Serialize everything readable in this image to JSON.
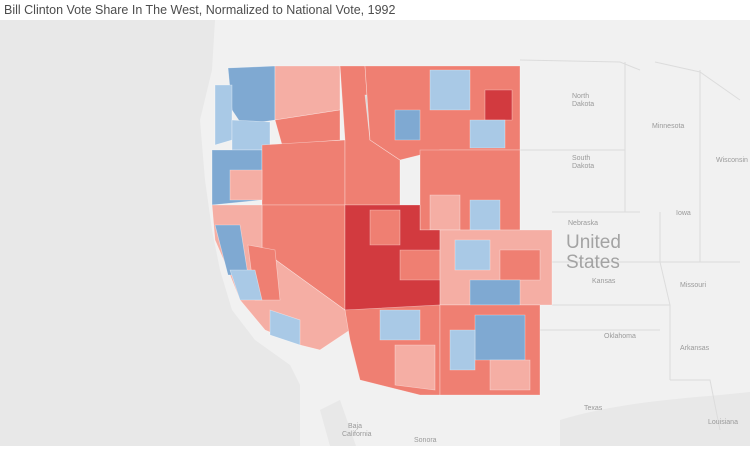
{
  "title": "Bill Clinton Vote Share In The West, Normalized to National Vote, 1992",
  "map": {
    "country_label_line1": "United",
    "country_label_line2": "States",
    "places": {
      "north_dakota": "North Dakota",
      "south_dakota": "South Dakota",
      "minnesota": "Minnesota",
      "wisconsin": "Wisconsin",
      "nebraska": "Nebraska",
      "iowa": "Iowa",
      "kansas": "Kansas",
      "missouri": "Missouri",
      "oklahoma": "Oklahoma",
      "arkansas": "Arkansas",
      "texas": "Texas",
      "louisiana": "Louisiana",
      "baja_california": "Baja California",
      "sonora": "Sonora"
    },
    "colors": {
      "strong_republican_lean": "#d23a3f",
      "republican_lean": "#ef7f72",
      "light_republican_lean": "#f5aea4",
      "neutral": "#d9d9d9",
      "light_democratic_lean": "#a9c9e6",
      "democratic_lean": "#7fa9d2",
      "water": "#e9e9e9",
      "land": "#f2f2f2"
    }
  }
}
